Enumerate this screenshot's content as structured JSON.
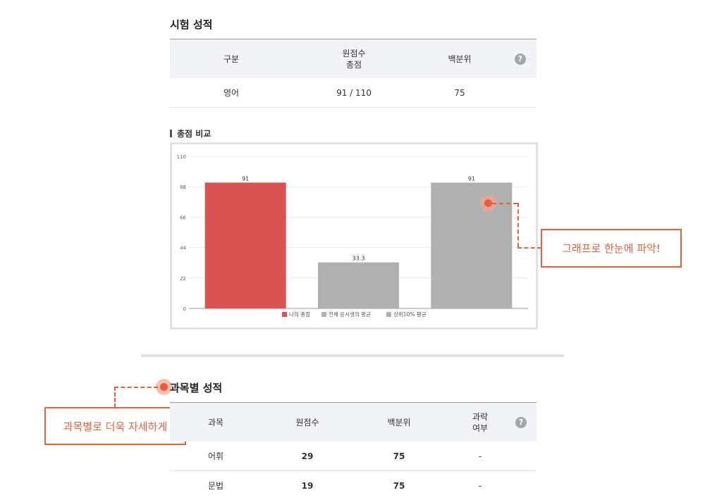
{
  "exam": {
    "title": "시험 성적",
    "headers": {
      "category": "구분",
      "raw_score": "원점수\n총점",
      "percentile": "백분위"
    },
    "help_icon": "question-icon",
    "row": {
      "category": "영어",
      "score": "91 / 110",
      "percentile": "75"
    }
  },
  "compare": {
    "title": "총점 비교"
  },
  "chart_data": {
    "type": "bar",
    "categories": [
      "나의 총점",
      "전체 응시생의 평균",
      "상위10% 평균"
    ],
    "values": [
      91,
      33.3,
      91
    ],
    "value_labels": [
      "91",
      "33.3",
      "91"
    ],
    "colors": [
      "#d95353",
      "#b0b0b0",
      "#b0b0b0"
    ],
    "ylim": [
      0,
      110
    ],
    "yticks": [
      "0",
      "22",
      "44",
      "66",
      "88",
      "110"
    ],
    "grid": true,
    "legend": "bottom",
    "legend_entries": [
      {
        "name": "나의 총점",
        "color": "#d95353"
      },
      {
        "name": "전체 응시생의 평균",
        "color": "#b0b0b0"
      },
      {
        "name": "상위10% 평균",
        "color": "#b0b0b0"
      }
    ]
  },
  "callouts": {
    "graph": "그래프로 한눈에 파악!",
    "subject": "과목별로 더욱 자세하게"
  },
  "subject": {
    "title": "과목별 성적",
    "headers": {
      "subject": "과목",
      "raw_score": "원점수",
      "percentile": "백분위",
      "fail": "과락\n여부"
    },
    "rows": [
      {
        "subject": "어휘",
        "score": "29",
        "percentile": "75",
        "fail": "-"
      },
      {
        "subject": "문법",
        "score": "19",
        "percentile": "75",
        "fail": "-"
      }
    ]
  },
  "colors": {
    "accent": "#e8603c",
    "my_bar": "#d95353",
    "other_bar": "#b0b0b0"
  }
}
